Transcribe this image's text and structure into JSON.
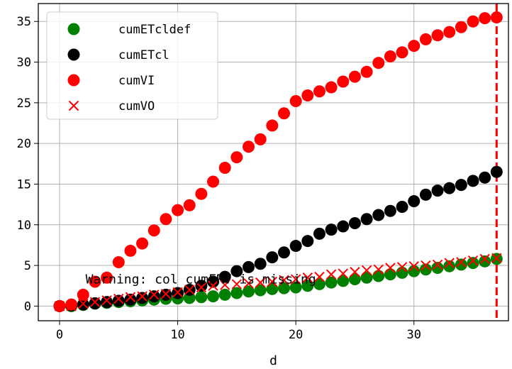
{
  "chart_data": {
    "type": "scatter",
    "xlabel": "d",
    "ylabel": "",
    "xlim": [
      -1.8,
      38.0
    ],
    "ylim": [
      -1.8,
      37.2
    ],
    "xticks": [
      0,
      10,
      20,
      30
    ],
    "yticks": [
      0,
      5,
      10,
      15,
      20,
      25,
      30,
      35
    ],
    "grid": true,
    "legend_position": "top-left",
    "x": [
      0,
      1,
      2,
      3,
      4,
      5,
      6,
      7,
      8,
      9,
      10,
      11,
      12,
      13,
      14,
      15,
      16,
      17,
      18,
      19,
      20,
      21,
      22,
      23,
      24,
      25,
      26,
      27,
      28,
      29,
      30,
      31,
      32,
      33,
      34,
      35,
      36,
      37
    ],
    "series": [
      {
        "name": "cumETcldef",
        "marker": "circle",
        "color": "#008000",
        "values": [
          0,
          0,
          0.15,
          0.3,
          0.4,
          0.5,
          0.6,
          0.7,
          0.8,
          0.9,
          0.95,
          1.0,
          1.1,
          1.2,
          1.4,
          1.6,
          1.8,
          1.95,
          2.1,
          2.2,
          2.3,
          2.5,
          2.7,
          2.9,
          3.1,
          3.3,
          3.5,
          3.7,
          3.9,
          4.1,
          4.3,
          4.5,
          4.7,
          4.9,
          5.1,
          5.3,
          5.5,
          5.8
        ]
      },
      {
        "name": "cumETcl",
        "marker": "circle",
        "color": "#000000",
        "values": [
          0,
          0.1,
          0.2,
          0.35,
          0.5,
          0.65,
          0.8,
          1.0,
          1.2,
          1.4,
          1.6,
          2.0,
          2.5,
          3.0,
          3.6,
          4.3,
          4.8,
          5.2,
          6.0,
          6.6,
          7.4,
          8.0,
          8.9,
          9.4,
          9.8,
          10.2,
          10.7,
          11.2,
          11.7,
          12.2,
          12.9,
          13.7,
          14.2,
          14.5,
          14.9,
          15.4,
          15.8,
          16.5
        ]
      },
      {
        "name": "cumVI",
        "marker": "circle",
        "color": "#ff0000",
        "values": [
          0,
          0.2,
          1.4,
          3.0,
          3.5,
          5.4,
          6.8,
          7.7,
          9.3,
          10.7,
          11.8,
          12.4,
          13.8,
          15.3,
          17.0,
          18.3,
          19.6,
          20.5,
          22.2,
          23.7,
          25.2,
          25.9,
          26.4,
          26.9,
          27.6,
          28.2,
          28.8,
          29.9,
          30.7,
          31.2,
          32.0,
          32.8,
          33.3,
          33.7,
          34.3,
          35.0,
          35.4,
          35.5
        ]
      },
      {
        "name": "cumVO",
        "marker": "x",
        "color": "#ff0000",
        "values": [
          0,
          0,
          0.3,
          0.5,
          0.7,
          0.9,
          1.1,
          1.2,
          1.4,
          1.5,
          1.7,
          2.0,
          2.3,
          2.5,
          2.6,
          2.7,
          2.8,
          2.9,
          3.0,
          3.2,
          3.3,
          3.5,
          3.6,
          3.9,
          4.0,
          4.2,
          4.4,
          4.5,
          4.7,
          4.8,
          4.9,
          5.0,
          5.1,
          5.3,
          5.4,
          5.6,
          5.8,
          5.9
        ]
      }
    ],
    "vline": {
      "x": 37,
      "color": "#ff0000",
      "style": "dashed"
    },
    "annotation": {
      "text": "Warning: col   cumFRV   is missing",
      "x": 2.2,
      "y": 2.8
    }
  }
}
